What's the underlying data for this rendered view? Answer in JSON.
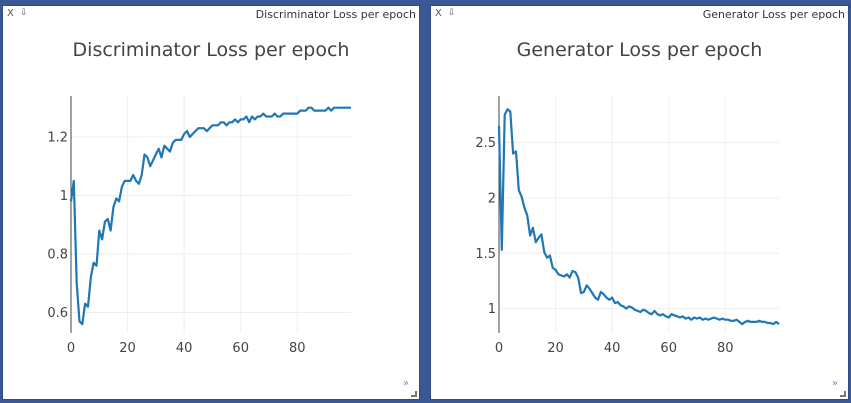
{
  "panes": [
    {
      "caption": "Discriminator Loss per epoch",
      "close_label": "X",
      "pin_label": "⇩",
      "expand_label": "»"
    },
    {
      "caption": "Generator Loss per epoch",
      "close_label": "X",
      "pin_label": "⇩",
      "expand_label": "»"
    }
  ],
  "colors": {
    "line": "#1f77b4",
    "grid": "#eeeeee",
    "axis": "#444444",
    "window_bg": "#3b5896"
  },
  "chart_data": [
    {
      "type": "line",
      "title": "Discriminator Loss per epoch",
      "xlabel": "",
      "ylabel": "",
      "xlim": [
        0,
        99
      ],
      "ylim": [
        0.53,
        1.34
      ],
      "xticks": [
        0,
        20,
        40,
        60,
        80
      ],
      "yticks": [
        0.6,
        0.8,
        1,
        1.2
      ],
      "ytick_labels": [
        "0.6",
        "0.8",
        "1",
        "1.2"
      ],
      "grid": true,
      "series": [
        {
          "x": [
            0,
            1,
            2,
            3,
            4,
            5,
            6,
            7,
            8,
            9,
            10,
            11,
            12,
            13,
            14,
            15,
            16,
            17,
            18,
            19,
            20,
            21,
            22,
            23,
            24,
            25,
            26,
            27,
            28,
            29,
            30,
            31,
            32,
            33,
            34,
            35,
            36,
            37,
            38,
            39,
            40,
            41,
            42,
            43,
            44,
            45,
            46,
            47,
            48,
            49,
            50,
            51,
            52,
            53,
            54,
            55,
            56,
            57,
            58,
            59,
            60,
            61,
            62,
            63,
            64,
            65,
            66,
            67,
            68,
            69,
            70,
            71,
            72,
            73,
            74,
            75,
            76,
            77,
            78,
            79,
            80,
            81,
            82,
            83,
            84,
            85,
            86,
            87,
            88,
            89,
            90,
            91,
            92,
            93,
            94,
            95,
            96,
            97,
            98,
            99
          ],
          "y": [
            0.98,
            1.05,
            0.7,
            0.57,
            0.56,
            0.63,
            0.62,
            0.72,
            0.77,
            0.76,
            0.88,
            0.85,
            0.91,
            0.92,
            0.88,
            0.96,
            0.99,
            0.98,
            1.03,
            1.05,
            1.05,
            1.05,
            1.07,
            1.05,
            1.04,
            1.07,
            1.14,
            1.13,
            1.1,
            1.12,
            1.14,
            1.16,
            1.13,
            1.17,
            1.16,
            1.15,
            1.18,
            1.19,
            1.19,
            1.19,
            1.21,
            1.22,
            1.2,
            1.21,
            1.22,
            1.23,
            1.23,
            1.23,
            1.22,
            1.23,
            1.24,
            1.24,
            1.24,
            1.25,
            1.25,
            1.24,
            1.25,
            1.25,
            1.26,
            1.25,
            1.26,
            1.26,
            1.27,
            1.25,
            1.27,
            1.26,
            1.27,
            1.27,
            1.28,
            1.27,
            1.27,
            1.27,
            1.28,
            1.27,
            1.27,
            1.28,
            1.28,
            1.28,
            1.28,
            1.28,
            1.28,
            1.29,
            1.29,
            1.29,
            1.3,
            1.3,
            1.29,
            1.29,
            1.29,
            1.29,
            1.29,
            1.3,
            1.29,
            1.3,
            1.3,
            1.3,
            1.3,
            1.3,
            1.3,
            1.3
          ]
        }
      ]
    },
    {
      "type": "line",
      "title": "Generator Loss per epoch",
      "xlabel": "",
      "ylabel": "",
      "xlim": [
        0,
        99
      ],
      "ylim": [
        0.78,
        2.92
      ],
      "xticks": [
        0,
        20,
        40,
        60,
        80
      ],
      "yticks": [
        1,
        1.5,
        2,
        2.5
      ],
      "ytick_labels": [
        "1",
        "1.5",
        "2",
        "2.5"
      ],
      "grid": true,
      "series": [
        {
          "x": [
            0,
            1,
            2,
            3,
            4,
            5,
            6,
            7,
            8,
            9,
            10,
            11,
            12,
            13,
            14,
            15,
            16,
            17,
            18,
            19,
            20,
            21,
            22,
            23,
            24,
            25,
            26,
            27,
            28,
            29,
            30,
            31,
            32,
            33,
            34,
            35,
            36,
            37,
            38,
            39,
            40,
            41,
            42,
            43,
            44,
            45,
            46,
            47,
            48,
            49,
            50,
            51,
            52,
            53,
            54,
            55,
            56,
            57,
            58,
            59,
            60,
            61,
            62,
            63,
            64,
            65,
            66,
            67,
            68,
            69,
            70,
            71,
            72,
            73,
            74,
            75,
            76,
            77,
            78,
            79,
            80,
            81,
            82,
            83,
            84,
            85,
            86,
            87,
            88,
            89,
            90,
            91,
            92,
            93,
            94,
            95,
            96,
            97,
            98,
            99
          ],
          "y": [
            2.65,
            1.53,
            2.75,
            2.8,
            2.78,
            2.4,
            2.42,
            2.07,
            2.01,
            1.91,
            1.84,
            1.66,
            1.73,
            1.6,
            1.64,
            1.67,
            1.51,
            1.46,
            1.48,
            1.37,
            1.35,
            1.31,
            1.3,
            1.29,
            1.31,
            1.28,
            1.34,
            1.33,
            1.28,
            1.14,
            1.15,
            1.21,
            1.18,
            1.14,
            1.1,
            1.08,
            1.15,
            1.13,
            1.1,
            1.08,
            1.1,
            1.05,
            1.06,
            1.03,
            1.02,
            1.0,
            1.02,
            1.01,
            0.99,
            0.98,
            0.97,
            0.99,
            0.98,
            0.96,
            0.95,
            0.98,
            0.95,
            0.94,
            0.95,
            0.93,
            0.92,
            0.95,
            0.94,
            0.93,
            0.92,
            0.93,
            0.91,
            0.92,
            0.9,
            0.92,
            0.91,
            0.92,
            0.9,
            0.91,
            0.9,
            0.91,
            0.92,
            0.91,
            0.9,
            0.91,
            0.9,
            0.9,
            0.89,
            0.89,
            0.9,
            0.88,
            0.86,
            0.88,
            0.89,
            0.88,
            0.88,
            0.88,
            0.89,
            0.88,
            0.88,
            0.87,
            0.87,
            0.86,
            0.88,
            0.86
          ]
        }
      ]
    }
  ]
}
